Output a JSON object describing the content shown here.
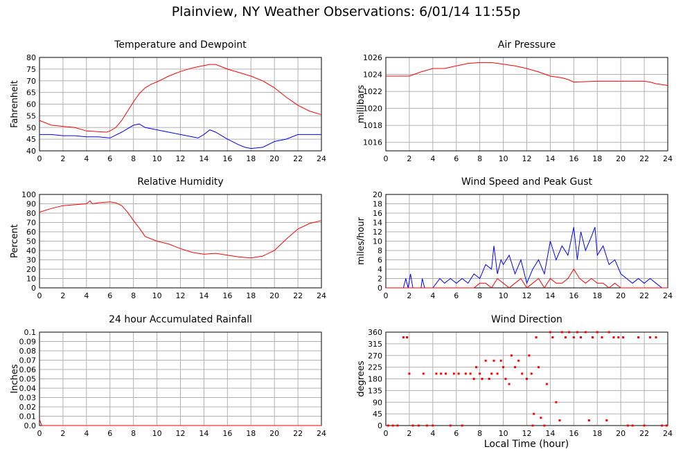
{
  "page": {
    "title": "Plainview, NY Weather Observations: 6/01/14 11:55p",
    "xlabel": "Local Time (hour)"
  },
  "colors": {
    "red": "#ff0000",
    "blue": "#0000ff",
    "grid": "#b0b0b0"
  },
  "chart_data": [
    {
      "type": "line",
      "title": "Temperature and Dewpoint",
      "xlabel": "",
      "ylabel": "Fahrenheit",
      "xlim": [
        0,
        24
      ],
      "ylim": [
        40,
        80
      ],
      "xticks": [
        0,
        2,
        4,
        6,
        8,
        10,
        12,
        14,
        16,
        18,
        20,
        22,
        24
      ],
      "yticks": [
        40,
        45,
        50,
        55,
        60,
        65,
        70,
        75,
        80
      ],
      "grid": true,
      "series": [
        {
          "color": "#ff0000",
          "x": [
            0,
            1,
            2,
            3,
            4,
            5,
            5.7,
            6,
            6.5,
            7,
            7.5,
            8,
            8.5,
            9,
            9.5,
            10,
            11,
            12,
            13,
            14,
            14.5,
            15,
            15.5,
            16,
            17,
            18,
            19,
            20,
            21,
            22,
            23,
            24
          ],
          "values": [
            53,
            51,
            50.5,
            50,
            48.5,
            48.2,
            48,
            48.5,
            50,
            53,
            57,
            61,
            64.5,
            67,
            68.5,
            69.5,
            72,
            74,
            75.5,
            76.5,
            77,
            77,
            76,
            75,
            73.5,
            72,
            70,
            67,
            63,
            59.5,
            57,
            55.5
          ]
        },
        {
          "color": "#0000ff",
          "x": [
            0,
            1,
            2,
            3,
            4,
            5,
            6,
            7,
            8,
            8.5,
            9,
            10,
            11,
            12,
            13,
            13.5,
            14,
            14.5,
            15,
            16,
            17,
            17.5,
            18,
            19,
            20,
            21,
            22,
            23,
            24
          ],
          "values": [
            47,
            47,
            46.5,
            46.5,
            46,
            46,
            45.5,
            48,
            51,
            51.5,
            50,
            49,
            48,
            47,
            46,
            45.5,
            47,
            49,
            48,
            45,
            42.5,
            41.5,
            41,
            41.5,
            44,
            45,
            47,
            47,
            47
          ]
        }
      ]
    },
    {
      "type": "line",
      "title": "Air Pressure",
      "xlabel": "",
      "ylabel": "millibars",
      "xlim": [
        0,
        24
      ],
      "ylim": [
        1015,
        1026
      ],
      "xticks": [
        0,
        2,
        4,
        6,
        8,
        10,
        12,
        14,
        16,
        18,
        20,
        22,
        24
      ],
      "yticks": [
        1016,
        1018,
        1020,
        1022,
        1024,
        1026
      ],
      "grid": true,
      "series": [
        {
          "color": "#ff0000",
          "x": [
            0,
            2,
            3,
            4,
            5,
            6,
            7,
            8,
            9,
            10,
            11,
            12,
            13,
            14,
            15,
            15.5,
            16,
            18,
            20,
            22,
            22.5,
            23,
            24
          ],
          "values": [
            1023.8,
            1023.8,
            1024.3,
            1024.7,
            1024.7,
            1025,
            1025.3,
            1025.4,
            1025.4,
            1025.2,
            1025,
            1024.7,
            1024.3,
            1023.8,
            1023.6,
            1023.4,
            1023.1,
            1023.2,
            1023.2,
            1023.2,
            1023.1,
            1022.9,
            1022.7
          ]
        }
      ]
    },
    {
      "type": "line",
      "title": "Relative Humidity",
      "xlabel": "",
      "ylabel": "Percent",
      "xlim": [
        0,
        24
      ],
      "ylim": [
        0,
        100
      ],
      "xticks": [
        0,
        2,
        4,
        6,
        8,
        10,
        12,
        14,
        16,
        18,
        20,
        22,
        24
      ],
      "yticks": [
        0,
        10,
        20,
        30,
        40,
        50,
        60,
        70,
        80,
        90,
        100
      ],
      "grid": true,
      "series": [
        {
          "color": "#ff0000",
          "x": [
            0,
            1,
            2,
            3,
            4,
            4.3,
            4.5,
            5,
            6,
            6.5,
            7,
            7.5,
            8,
            8.5,
            9,
            10,
            11,
            12,
            13,
            14,
            15,
            16,
            17,
            18,
            19,
            20,
            21,
            22,
            23,
            24
          ],
          "values": [
            81,
            85,
            88,
            89,
            90,
            93,
            90,
            91,
            92,
            91,
            88,
            81,
            72,
            64,
            55,
            50,
            47,
            42,
            38,
            36,
            37,
            35,
            33,
            32,
            34,
            40,
            52,
            63,
            69,
            72
          ]
        }
      ]
    },
    {
      "type": "line",
      "title": "Wind Speed and Peak Gust",
      "xlabel": "",
      "ylabel": "miles/hour",
      "xlim": [
        0,
        24
      ],
      "ylim": [
        0,
        20
      ],
      "xticks": [
        0,
        2,
        4,
        6,
        8,
        10,
        12,
        14,
        16,
        18,
        20,
        22,
        24
      ],
      "yticks": [
        0,
        2,
        4,
        6,
        8,
        10,
        12,
        14,
        16,
        18,
        20
      ],
      "grid": true,
      "series": [
        {
          "color": "#0000ff",
          "x": [
            0,
            1.5,
            1.7,
            1.9,
            2.1,
            2.3,
            3,
            3.1,
            3.3,
            4,
            4.3,
            4.6,
            5,
            5.5,
            6,
            6.5,
            7,
            7.5,
            8,
            8.5,
            9,
            9.2,
            9.5,
            9.8,
            10,
            10.5,
            11,
            11.5,
            12,
            12.5,
            13,
            13.5,
            14,
            14.5,
            15,
            15.5,
            16,
            16.3,
            16.6,
            17,
            17.5,
            17.8,
            18,
            18.5,
            19,
            19.5,
            20,
            20.5,
            21,
            21.5,
            22,
            22.5,
            23,
            23.5
          ],
          "values": [
            0,
            0,
            2,
            0,
            3,
            0,
            0,
            2,
            0,
            0,
            1,
            2,
            1,
            2,
            1,
            2,
            1,
            3,
            2,
            5,
            4,
            9,
            3,
            6,
            5,
            7,
            3,
            6,
            1,
            4,
            6,
            3,
            10,
            6,
            9,
            7,
            13,
            6,
            12,
            8,
            11,
            13,
            7,
            9,
            5,
            6,
            3,
            2,
            1,
            2,
            1,
            2,
            1,
            0
          ]
        },
        {
          "color": "#ff0000",
          "x": [
            0,
            7.5,
            8,
            8.5,
            9,
            9.5,
            10,
            10.5,
            11,
            11.5,
            12,
            12.5,
            13,
            13.5,
            14,
            14.5,
            15,
            15.5,
            16,
            16.5,
            17,
            17.5,
            18,
            18.5,
            19,
            19.5,
            20,
            24
          ],
          "values": [
            0,
            0,
            1,
            1,
            0,
            2,
            1,
            0,
            1,
            2,
            0,
            1,
            2,
            0,
            2,
            1,
            1,
            2,
            4,
            2,
            1,
            2,
            1,
            1,
            0,
            1,
            0,
            0
          ]
        }
      ]
    },
    {
      "type": "line",
      "title": "24 hour Accumulated Rainfall",
      "xlabel": "",
      "ylabel": "Inches",
      "xlim": [
        0,
        24
      ],
      "ylim": [
        0,
        0.1
      ],
      "xticks": [
        0,
        2,
        4,
        6,
        8,
        10,
        12,
        14,
        16,
        18,
        20,
        22,
        24
      ],
      "yticks": [
        "0.0",
        "0.01",
        "0.02",
        "0.03",
        "0.04",
        "0.05",
        "0.06",
        "0.07",
        "0.08",
        "0.09",
        "0.1"
      ],
      "grid": true,
      "series": [
        {
          "color": "#ff0000",
          "x": [
            0,
            0.1,
            0.2,
            24
          ],
          "values": [
            0.007,
            0.003,
            0,
            0
          ]
        }
      ]
    },
    {
      "type": "scatter",
      "title": "Wind Direction",
      "xlabel": "Local Time (hour)",
      "ylabel": "degrees",
      "xlim": [
        0,
        24
      ],
      "ylim": [
        0,
        360
      ],
      "xticks": [
        0,
        2,
        4,
        6,
        8,
        10,
        12,
        14,
        16,
        18,
        20,
        22,
        24
      ],
      "yticks": [
        0,
        45,
        90,
        135,
        180,
        225,
        270,
        315,
        360
      ],
      "grid": true,
      "series": [
        {
          "color": "#ff0000",
          "points": [
            [
              0.2,
              0
            ],
            [
              0.6,
              0
            ],
            [
              1.0,
              0
            ],
            [
              1.5,
              340
            ],
            [
              1.8,
              340
            ],
            [
              2.0,
              200
            ],
            [
              2.3,
              0
            ],
            [
              2.8,
              0
            ],
            [
              3.2,
              200
            ],
            [
              3.5,
              0
            ],
            [
              4.0,
              0
            ],
            [
              4.3,
              200
            ],
            [
              4.7,
              200
            ],
            [
              5.1,
              200
            ],
            [
              5.5,
              0
            ],
            [
              5.8,
              200
            ],
            [
              6.2,
              200
            ],
            [
              6.5,
              0
            ],
            [
              6.8,
              200
            ],
            [
              7.2,
              200
            ],
            [
              7.5,
              180
            ],
            [
              7.7,
              225
            ],
            [
              8.0,
              200
            ],
            [
              8.2,
              180
            ],
            [
              8.5,
              250
            ],
            [
              8.8,
              180
            ],
            [
              9.0,
              200
            ],
            [
              9.2,
              250
            ],
            [
              9.5,
              200
            ],
            [
              9.8,
              250
            ],
            [
              10.0,
              225
            ],
            [
              10.2,
              180
            ],
            [
              10.5,
              160
            ],
            [
              10.7,
              270
            ],
            [
              11.0,
              225
            ],
            [
              11.3,
              250
            ],
            [
              11.6,
              200
            ],
            [
              12.0,
              180
            ],
            [
              12.2,
              270
            ],
            [
              12.4,
              200
            ],
            [
              12.5,
              0
            ],
            [
              12.6,
              45
            ],
            [
              12.8,
              340
            ],
            [
              13.0,
              225
            ],
            [
              13.2,
              30
            ],
            [
              13.5,
              0
            ],
            [
              13.7,
              160
            ],
            [
              14.0,
              360
            ],
            [
              14.2,
              340
            ],
            [
              14.5,
              90
            ],
            [
              14.8,
              20
            ],
            [
              15.0,
              360
            ],
            [
              15.3,
              340
            ],
            [
              15.6,
              360
            ],
            [
              16.0,
              340
            ],
            [
              16.3,
              360
            ],
            [
              16.6,
              340
            ],
            [
              17.0,
              360
            ],
            [
              17.3,
              20
            ],
            [
              17.6,
              340
            ],
            [
              18.0,
              360
            ],
            [
              18.4,
              340
            ],
            [
              18.8,
              20
            ],
            [
              19.0,
              360
            ],
            [
              19.4,
              340
            ],
            [
              19.8,
              340
            ],
            [
              20.2,
              340
            ],
            [
              20.6,
              0
            ],
            [
              21.0,
              0
            ],
            [
              21.5,
              340
            ],
            [
              22.0,
              0
            ],
            [
              22.5,
              340
            ],
            [
              23.0,
              340
            ],
            [
              23.5,
              0
            ],
            [
              23.9,
              0
            ]
          ]
        }
      ]
    }
  ]
}
